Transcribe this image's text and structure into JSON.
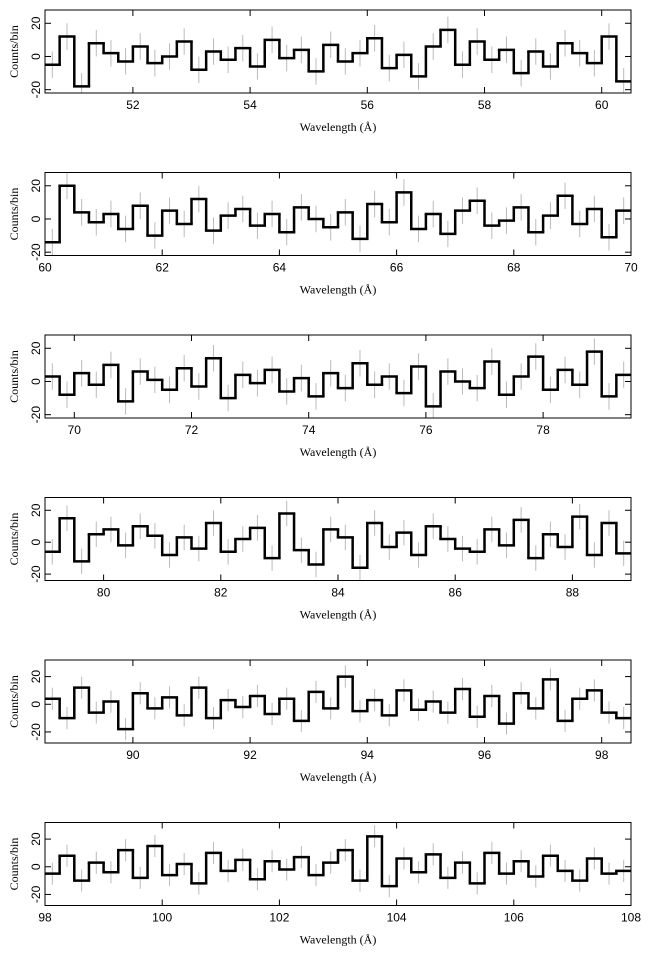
{
  "chart_data": [
    {
      "type": "step",
      "xlabel": "Wavelength (Å)",
      "ylabel": "Counts/bin",
      "color": "#000000",
      "error_color": "#bbbbbb",
      "error": 8,
      "xlim": [
        50.5,
        60.5
      ],
      "xticks": [
        52,
        54,
        56,
        58,
        60
      ],
      "ylim": [
        -22,
        28
      ],
      "yticks": [
        -20,
        0,
        20
      ],
      "x": [
        50.5,
        50.75,
        51,
        51.25,
        51.5,
        51.75,
        52,
        52.25,
        52.5,
        52.75,
        53,
        53.25,
        53.5,
        53.75,
        54,
        54.25,
        54.5,
        54.75,
        55,
        55.25,
        55.5,
        55.75,
        56,
        56.25,
        56.5,
        56.75,
        57,
        57.25,
        57.5,
        57.75,
        58,
        58.25,
        58.5,
        58.75,
        59,
        59.25,
        59.5,
        59.75,
        60,
        60.25
      ],
      "values": [
        -5,
        12,
        -18,
        8,
        2,
        -3,
        6,
        -4,
        0,
        9,
        -8,
        3,
        -2,
        5,
        -6,
        10,
        -1,
        4,
        -9,
        7,
        -3,
        2,
        11,
        -7,
        1,
        -12,
        6,
        16,
        -5,
        9,
        -2,
        4,
        -10,
        3,
        -6,
        8,
        2,
        -4,
        12,
        -15
      ]
    },
    {
      "type": "step",
      "xlabel": "Wavelength (Å)",
      "ylabel": "Counts/bin",
      "color": "#000000",
      "error_color": "#bbbbbb",
      "error": 8,
      "xlim": [
        60,
        70
      ],
      "xticks": [
        60,
        62,
        64,
        66,
        68,
        70
      ],
      "ylim": [
        -22,
        28
      ],
      "yticks": [
        -20,
        0,
        20
      ],
      "x": [
        60,
        60.25,
        60.5,
        60.75,
        61,
        61.25,
        61.5,
        61.75,
        62,
        62.25,
        62.5,
        62.75,
        63,
        63.25,
        63.5,
        63.75,
        64,
        64.25,
        64.5,
        64.75,
        65,
        65.25,
        65.5,
        65.75,
        66,
        66.25,
        66.5,
        66.75,
        67,
        67.25,
        67.5,
        67.75,
        68,
        68.25,
        68.5,
        68.75,
        69,
        69.25,
        69.5,
        69.75
      ],
      "values": [
        -14,
        20,
        4,
        -2,
        3,
        -6,
        8,
        -10,
        5,
        -3,
        12,
        -7,
        2,
        6,
        -4,
        3,
        -8,
        7,
        0,
        -5,
        4,
        -12,
        9,
        -2,
        16,
        -6,
        3,
        -9,
        5,
        11,
        -4,
        -1,
        7,
        -8,
        2,
        14,
        -3,
        6,
        -11,
        5
      ]
    },
    {
      "type": "step",
      "xlabel": "Wavelength (Å)",
      "ylabel": "Counts/bin",
      "color": "#000000",
      "error_color": "#bbbbbb",
      "error": 8,
      "xlim": [
        69.5,
        79.5
      ],
      "xticks": [
        70,
        72,
        74,
        76,
        78
      ],
      "ylim": [
        -22,
        28
      ],
      "yticks": [
        -20,
        0,
        20
      ],
      "x": [
        69.5,
        69.75,
        70,
        70.25,
        70.5,
        70.75,
        71,
        71.25,
        71.5,
        71.75,
        72,
        72.25,
        72.5,
        72.75,
        73,
        73.25,
        73.5,
        73.75,
        74,
        74.25,
        74.5,
        74.75,
        75,
        75.25,
        75.5,
        75.75,
        76,
        76.25,
        76.5,
        76.75,
        77,
        77.25,
        77.5,
        77.75,
        78,
        78.25,
        78.5,
        78.75,
        79,
        79.25
      ],
      "values": [
        3,
        -8,
        5,
        -2,
        10,
        -12,
        6,
        1,
        -5,
        8,
        -3,
        14,
        -10,
        4,
        -1,
        7,
        -6,
        2,
        -9,
        5,
        -4,
        11,
        -2,
        3,
        -7,
        9,
        -15,
        6,
        0,
        -4,
        12,
        -8,
        3,
        15,
        -5,
        7,
        -2,
        18,
        -9,
        4
      ]
    },
    {
      "type": "step",
      "xlabel": "Wavelength (Å)",
      "ylabel": "Counts/bin",
      "color": "#000000",
      "error_color": "#bbbbbb",
      "error": 8,
      "xlim": [
        79,
        89
      ],
      "xticks": [
        80,
        82,
        84,
        86,
        88
      ],
      "ylim": [
        -24,
        28
      ],
      "yticks": [
        -20,
        0,
        20
      ],
      "x": [
        79,
        79.25,
        79.5,
        79.75,
        80,
        80.25,
        80.5,
        80.75,
        81,
        81.25,
        81.5,
        81.75,
        82,
        82.25,
        82.5,
        82.75,
        83,
        83.25,
        83.5,
        83.75,
        84,
        84.25,
        84.5,
        84.75,
        85,
        85.25,
        85.5,
        85.75,
        86,
        86.25,
        86.5,
        86.75,
        87,
        87.25,
        87.5,
        87.75,
        88,
        88.25,
        88.5,
        88.75
      ],
      "values": [
        -6,
        15,
        -12,
        5,
        8,
        -2,
        10,
        4,
        -8,
        3,
        -4,
        12,
        -6,
        2,
        9,
        -10,
        18,
        -5,
        -14,
        8,
        3,
        -16,
        12,
        -3,
        6,
        -8,
        10,
        2,
        -4,
        -6,
        8,
        -2,
        14,
        -10,
        5,
        -3,
        16,
        -8,
        12,
        -7
      ]
    },
    {
      "type": "step",
      "xlabel": "Wavelength (Å)",
      "ylabel": "Counts/bin",
      "color": "#000000",
      "error_color": "#bbbbbb",
      "error": 8,
      "xlim": [
        88.5,
        98.5
      ],
      "xticks": [
        90,
        92,
        94,
        96,
        98
      ],
      "ylim": [
        -28,
        32
      ],
      "yticks": [
        -20,
        0,
        20
      ],
      "x": [
        88.5,
        88.75,
        89,
        89.25,
        89.5,
        89.75,
        90,
        90.25,
        90.5,
        90.75,
        91,
        91.25,
        91.5,
        91.75,
        92,
        92.25,
        92.5,
        92.75,
        93,
        93.25,
        93.5,
        93.75,
        94,
        94.25,
        94.5,
        94.75,
        95,
        95.25,
        95.5,
        95.75,
        96,
        96.25,
        96.5,
        96.75,
        97,
        97.25,
        97.5,
        97.75,
        98,
        98.25
      ],
      "values": [
        4,
        -10,
        12,
        -6,
        2,
        -18,
        8,
        -3,
        5,
        -8,
        12,
        -10,
        3,
        -2,
        6,
        -7,
        4,
        -12,
        9,
        -3,
        20,
        -5,
        3,
        -8,
        10,
        -4,
        2,
        -6,
        11,
        -9,
        6,
        -14,
        8,
        -3,
        18,
        -12,
        4,
        10,
        -6,
        -10
      ]
    },
    {
      "type": "step",
      "xlabel": "Wavelength (Å)",
      "ylabel": "Counts/bin",
      "color": "#000000",
      "error_color": "#bbbbbb",
      "error": 8,
      "xlim": [
        98,
        108
      ],
      "xticks": [
        98,
        100,
        102,
        104,
        106,
        108
      ],
      "ylim": [
        -28,
        32
      ],
      "yticks": [
        -20,
        0,
        20
      ],
      "x": [
        98,
        98.25,
        98.5,
        98.75,
        99,
        99.25,
        99.5,
        99.75,
        100,
        100.25,
        100.5,
        100.75,
        101,
        101.25,
        101.5,
        101.75,
        102,
        102.25,
        102.5,
        102.75,
        103,
        103.25,
        103.5,
        103.75,
        104,
        104.25,
        104.5,
        104.75,
        105,
        105.25,
        105.5,
        105.75,
        106,
        106.25,
        106.5,
        106.75,
        107,
        107.25,
        107.5,
        107.75
      ],
      "values": [
        -5,
        8,
        -10,
        3,
        -4,
        12,
        -8,
        15,
        -6,
        2,
        -12,
        10,
        -3,
        5,
        -9,
        4,
        -2,
        7,
        -6,
        3,
        12,
        -10,
        22,
        -14,
        6,
        -4,
        9,
        -8,
        3,
        -12,
        10,
        -5,
        4,
        -7,
        8,
        -3,
        -10,
        6,
        -5,
        -3
      ]
    }
  ]
}
